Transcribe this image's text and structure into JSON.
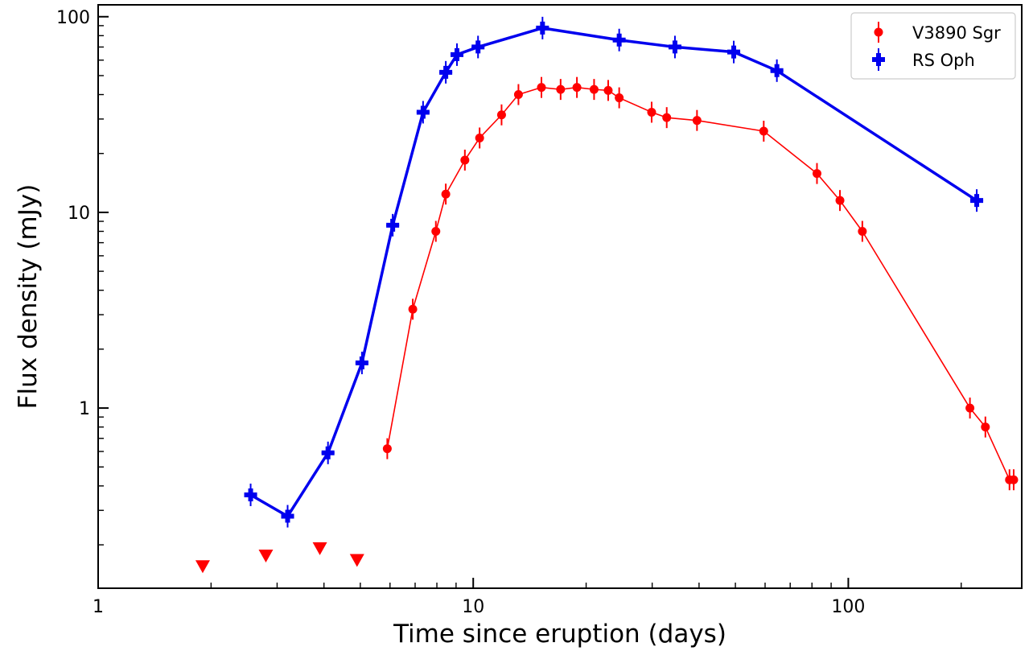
{
  "chart_data": {
    "type": "scatter",
    "title": "",
    "xlabel": "Time since eruption (days)",
    "ylabel": "Flux density (mJy)",
    "xscale": "log",
    "yscale": "log",
    "xlim": [
      1,
      290
    ],
    "ylim": [
      0.12,
      115
    ],
    "x_ticks": [
      1,
      10,
      100
    ],
    "x_tick_labels": [
      "1",
      "10",
      "100"
    ],
    "y_ticks": [
      1,
      10,
      100
    ],
    "y_tick_labels": [
      "1",
      "10",
      "100"
    ],
    "grid": false,
    "legend": "top-right",
    "series": [
      {
        "name": "V3890 Sgr",
        "color": "#ff0000",
        "marker": "circle",
        "x": [
          5.9,
          6.9,
          7.95,
          8.45,
          9.5,
          10.4,
          11.9,
          13.2,
          15.2,
          17.1,
          18.9,
          21.0,
          22.9,
          24.5,
          29.9,
          32.8,
          39.5,
          59.5,
          82.5,
          95.0,
          109.0,
          211.0,
          232.0,
          269.0,
          276.0
        ],
        "y": [
          0.62,
          3.2,
          8.0,
          12.4,
          18.5,
          24.0,
          31.5,
          40.0,
          43.5,
          42.5,
          43.5,
          42.5,
          42.0,
          38.5,
          32.5,
          30.5,
          29.5,
          26.0,
          15.8,
          11.5,
          8.0,
          1.0,
          0.8,
          0.43,
          0.43
        ],
        "upper_limits": {
          "x": [
            1.9,
            2.8,
            3.9,
            4.9
          ],
          "y": [
            0.156,
            0.177,
            0.193,
            0.168
          ]
        }
      },
      {
        "name": "RS Oph",
        "color": "#0000ee",
        "marker": "plus",
        "x": [
          2.55,
          3.2,
          4.1,
          5.05,
          6.1,
          7.35,
          8.45,
          9.05,
          10.3,
          15.3,
          24.5,
          34.5,
          49.5,
          64.5,
          220.0
        ],
        "y": [
          0.36,
          0.28,
          0.59,
          1.7,
          8.6,
          32.5,
          52.0,
          64.0,
          70.0,
          87.5,
          76.0,
          70.0,
          66.0,
          53.0,
          11.5
        ]
      }
    ]
  }
}
